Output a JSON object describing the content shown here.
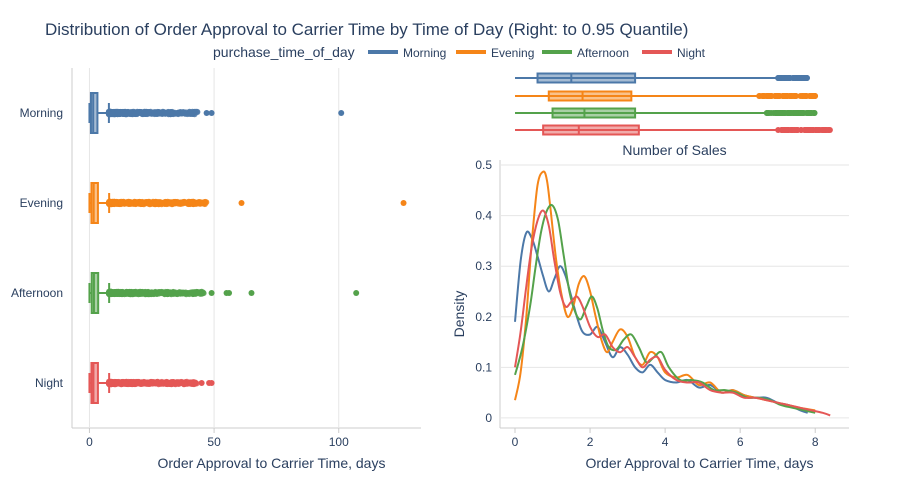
{
  "title": "Distribution of Order Approval to Carrier Time by Time of Day (Right: to 0.95 Quantile)",
  "legend": {
    "title": "purchase_time_of_day",
    "items": [
      {
        "name": "Morning",
        "color": "#4c78a8"
      },
      {
        "name": "Evening",
        "color": "#f58518"
      },
      {
        "name": "Afternoon",
        "color": "#54a24b"
      },
      {
        "name": "Night",
        "color": "#e45756"
      }
    ]
  },
  "chart_data": [
    {
      "type": "box",
      "orientation": "horizontal",
      "xlabel": "Order Approval to Carrier Time, days",
      "ylabel": "",
      "xlim": [
        -7,
        133
      ],
      "xticks": [
        0,
        50,
        100
      ],
      "grid": true,
      "categories": [
        "Morning",
        "Evening",
        "Afternoon",
        "Night"
      ],
      "series": [
        {
          "name": "Morning",
          "color": "#4c78a8",
          "min": 0,
          "q1": 0.6,
          "median": 1.5,
          "q3": 3.2,
          "upper_fence": 7.8,
          "outlier_range": [
            7.8,
            44
          ],
          "outliers": [
            47,
            49,
            101
          ]
        },
        {
          "name": "Evening",
          "color": "#f58518",
          "min": 0,
          "q1": 0.8,
          "median": 1.7,
          "q3": 3.4,
          "upper_fence": 7.9,
          "outlier_range": [
            7.9,
            47
          ],
          "outliers": [
            61,
            126
          ]
        },
        {
          "name": "Afternoon",
          "color": "#54a24b",
          "min": 0,
          "q1": 0.9,
          "median": 1.8,
          "q3": 3.5,
          "upper_fence": 7.9,
          "outlier_range": [
            7.9,
            46
          ],
          "outliers": [
            49,
            55,
            56,
            65,
            107
          ]
        },
        {
          "name": "Night",
          "color": "#e45756",
          "min": 0,
          "q1": 0.8,
          "median": 1.6,
          "q3": 3.4,
          "upper_fence": 7.9,
          "outlier_range": [
            7.9,
            43
          ],
          "outliers": [
            45,
            48,
            49
          ]
        }
      ]
    },
    {
      "type": "box",
      "orientation": "horizontal",
      "title": "Number of Sales",
      "xlim": [
        -0.4,
        8.9
      ],
      "categories": [
        "Morning",
        "Evening",
        "Afternoon",
        "Night"
      ],
      "series": [
        {
          "name": "Morning",
          "color": "#4c78a8",
          "min": 0,
          "q1": 0.6,
          "median": 1.5,
          "q3": 3.2,
          "upper_fence": 7.0,
          "outlier_range": [
            7.0,
            7.8
          ]
        },
        {
          "name": "Evening",
          "color": "#f58518",
          "min": 0,
          "q1": 0.9,
          "median": 1.8,
          "q3": 3.1,
          "upper_fence": 6.5,
          "outlier_range": [
            6.5,
            8.0
          ]
        },
        {
          "name": "Afternoon",
          "color": "#54a24b",
          "min": 0,
          "q1": 1.0,
          "median": 1.85,
          "q3": 3.2,
          "upper_fence": 6.7,
          "outlier_range": [
            6.7,
            8.0
          ]
        },
        {
          "name": "Night",
          "color": "#e45756",
          "min": 0,
          "q1": 0.75,
          "median": 1.7,
          "q3": 3.3,
          "upper_fence": 7.0,
          "outlier_range": [
            7.0,
            8.4
          ]
        }
      ]
    },
    {
      "type": "line",
      "xlabel": "Order Approval to Carrier Time, days",
      "ylabel": "Density",
      "xlim": [
        -0.4,
        8.9
      ],
      "ylim": [
        -0.02,
        0.51
      ],
      "xticks": [
        0,
        2,
        4,
        6,
        8
      ],
      "yticks": [
        0,
        0.1,
        0.2,
        0.3,
        0.4,
        0.5
      ],
      "grid": true,
      "series": [
        {
          "name": "Morning",
          "color": "#4c78a8",
          "x": [
            0,
            0.15,
            0.3,
            0.45,
            0.6,
            0.75,
            0.9,
            1.05,
            1.2,
            1.35,
            1.5,
            1.65,
            1.8,
            2.0,
            2.2,
            2.4,
            2.6,
            2.8,
            3.0,
            3.2,
            3.4,
            3.6,
            3.8,
            4.0,
            4.3,
            4.6,
            4.9,
            5.2,
            5.5,
            5.8,
            6.1,
            6.4,
            6.7,
            7.0,
            7.3,
            7.6,
            7.8
          ],
          "y": [
            0.19,
            0.31,
            0.366,
            0.355,
            0.32,
            0.28,
            0.25,
            0.275,
            0.3,
            0.28,
            0.24,
            0.2,
            0.17,
            0.165,
            0.18,
            0.15,
            0.12,
            0.14,
            0.125,
            0.1,
            0.09,
            0.105,
            0.09,
            0.075,
            0.07,
            0.075,
            0.06,
            0.065,
            0.05,
            0.055,
            0.045,
            0.04,
            0.04,
            0.03,
            0.025,
            0.015,
            0.01
          ]
        },
        {
          "name": "Evening",
          "color": "#f58518",
          "x": [
            0,
            0.15,
            0.3,
            0.45,
            0.6,
            0.75,
            0.85,
            0.95,
            1.1,
            1.25,
            1.4,
            1.55,
            1.7,
            1.85,
            2.0,
            2.15,
            2.3,
            2.45,
            2.6,
            2.8,
            3.0,
            3.2,
            3.4,
            3.6,
            3.8,
            4.0,
            4.3,
            4.6,
            4.9,
            5.2,
            5.5,
            5.8,
            6.1,
            6.4,
            6.7,
            7.0,
            7.3,
            7.6,
            8.0
          ],
          "y": [
            0.035,
            0.09,
            0.2,
            0.35,
            0.46,
            0.487,
            0.47,
            0.41,
            0.31,
            0.24,
            0.2,
            0.22,
            0.265,
            0.28,
            0.25,
            0.2,
            0.155,
            0.13,
            0.15,
            0.175,
            0.16,
            0.12,
            0.105,
            0.13,
            0.12,
            0.09,
            0.08,
            0.085,
            0.065,
            0.07,
            0.05,
            0.055,
            0.045,
            0.04,
            0.035,
            0.03,
            0.025,
            0.02,
            0.015
          ]
        },
        {
          "name": "Afternoon",
          "color": "#54a24b",
          "x": [
            0,
            0.2,
            0.4,
            0.55,
            0.7,
            0.85,
            1.0,
            1.15,
            1.3,
            1.45,
            1.6,
            1.75,
            1.9,
            2.05,
            2.2,
            2.35,
            2.5,
            2.7,
            2.9,
            3.1,
            3.3,
            3.5,
            3.7,
            3.9,
            4.1,
            4.4,
            4.7,
            5.0,
            5.3,
            5.6,
            5.9,
            6.2,
            6.5,
            6.8,
            7.1,
            7.4,
            7.7,
            8.0
          ],
          "y": [
            0.085,
            0.14,
            0.22,
            0.3,
            0.37,
            0.41,
            0.42,
            0.39,
            0.32,
            0.25,
            0.21,
            0.195,
            0.22,
            0.24,
            0.215,
            0.17,
            0.14,
            0.135,
            0.155,
            0.165,
            0.14,
            0.11,
            0.12,
            0.13,
            0.1,
            0.075,
            0.075,
            0.07,
            0.055,
            0.055,
            0.05,
            0.04,
            0.04,
            0.035,
            0.025,
            0.02,
            0.015,
            0.01
          ]
        },
        {
          "name": "Night",
          "color": "#e45756",
          "x": [
            0,
            0.15,
            0.3,
            0.45,
            0.6,
            0.75,
            0.9,
            1.05,
            1.2,
            1.35,
            1.5,
            1.65,
            1.8,
            2.0,
            2.2,
            2.4,
            2.6,
            2.8,
            3.0,
            3.2,
            3.4,
            3.6,
            3.8,
            4.0,
            4.3,
            4.6,
            4.9,
            5.2,
            5.5,
            5.8,
            6.1,
            6.4,
            6.7,
            7.0,
            7.3,
            7.6,
            7.9,
            8.2,
            8.4
          ],
          "y": [
            0.1,
            0.17,
            0.26,
            0.34,
            0.39,
            0.41,
            0.38,
            0.31,
            0.25,
            0.22,
            0.23,
            0.24,
            0.22,
            0.18,
            0.16,
            0.165,
            0.14,
            0.13,
            0.14,
            0.12,
            0.1,
            0.115,
            0.12,
            0.095,
            0.075,
            0.07,
            0.07,
            0.055,
            0.05,
            0.05,
            0.04,
            0.04,
            0.035,
            0.03,
            0.025,
            0.02,
            0.015,
            0.01,
            0.005
          ]
        }
      ]
    }
  ]
}
